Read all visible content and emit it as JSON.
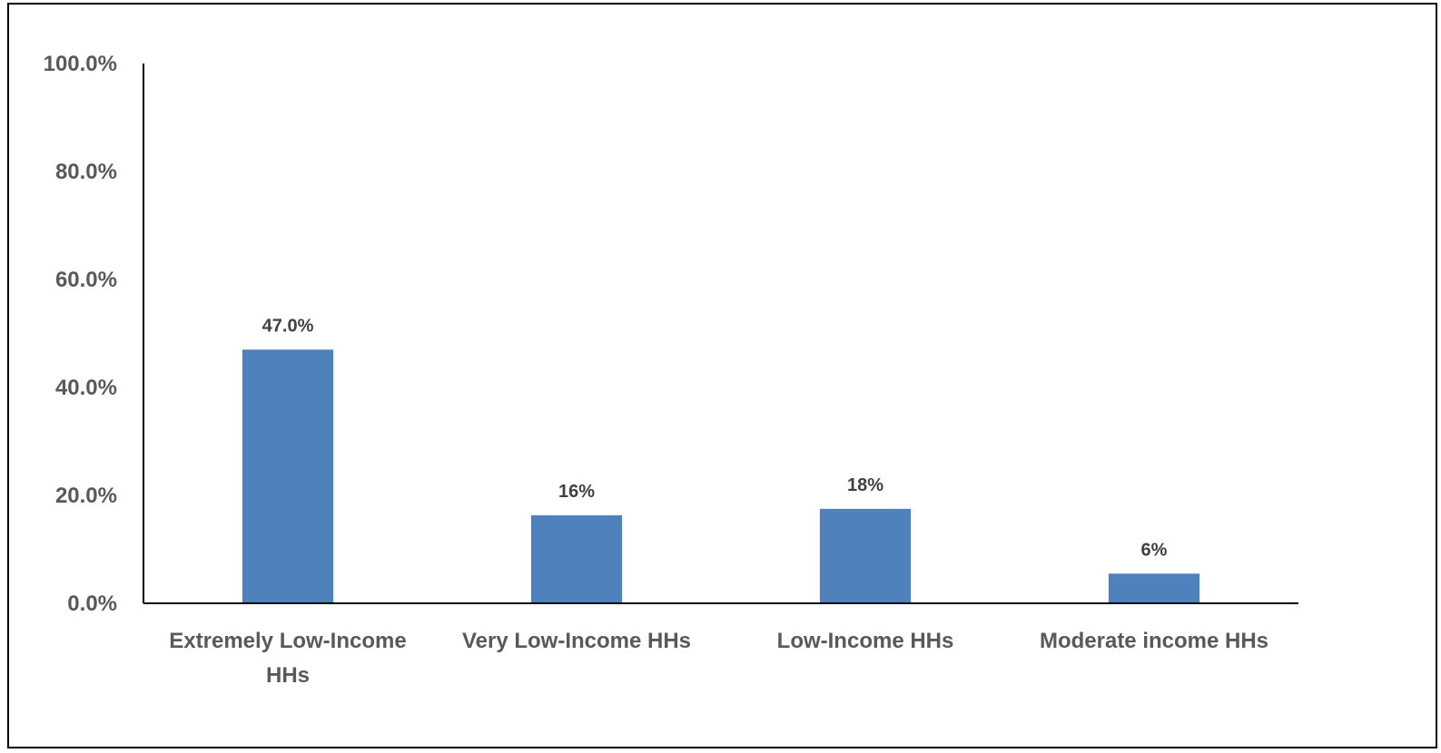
{
  "chart_data": {
    "type": "bar",
    "categories": [
      [
        "Extremely Low-Income",
        "HHs"
      ],
      [
        "Very Low-Income HHs"
      ],
      [
        "Low-Income HHs"
      ],
      [
        "Moderate income HHs"
      ]
    ],
    "values": [
      47.0,
      16.3,
      17.5,
      5.5
    ],
    "data_labels": [
      "47.0%",
      "16%",
      "18%",
      "6%"
    ],
    "ytick_labels": [
      "0.0%",
      "20.0%",
      "40.0%",
      "60.0%",
      "80.0%",
      "100.0%"
    ],
    "yticks": [
      0,
      20,
      40,
      60,
      80,
      100
    ],
    "ylim": [
      0,
      100
    ],
    "title": "",
    "xlabel": "",
    "ylabel": "",
    "grid": false,
    "legend": "none",
    "colors": {
      "bar": "#4f81bd",
      "axis": "#000000",
      "tick_text": "#595959",
      "data_label_text": "#404040",
      "border": "#000000"
    }
  }
}
